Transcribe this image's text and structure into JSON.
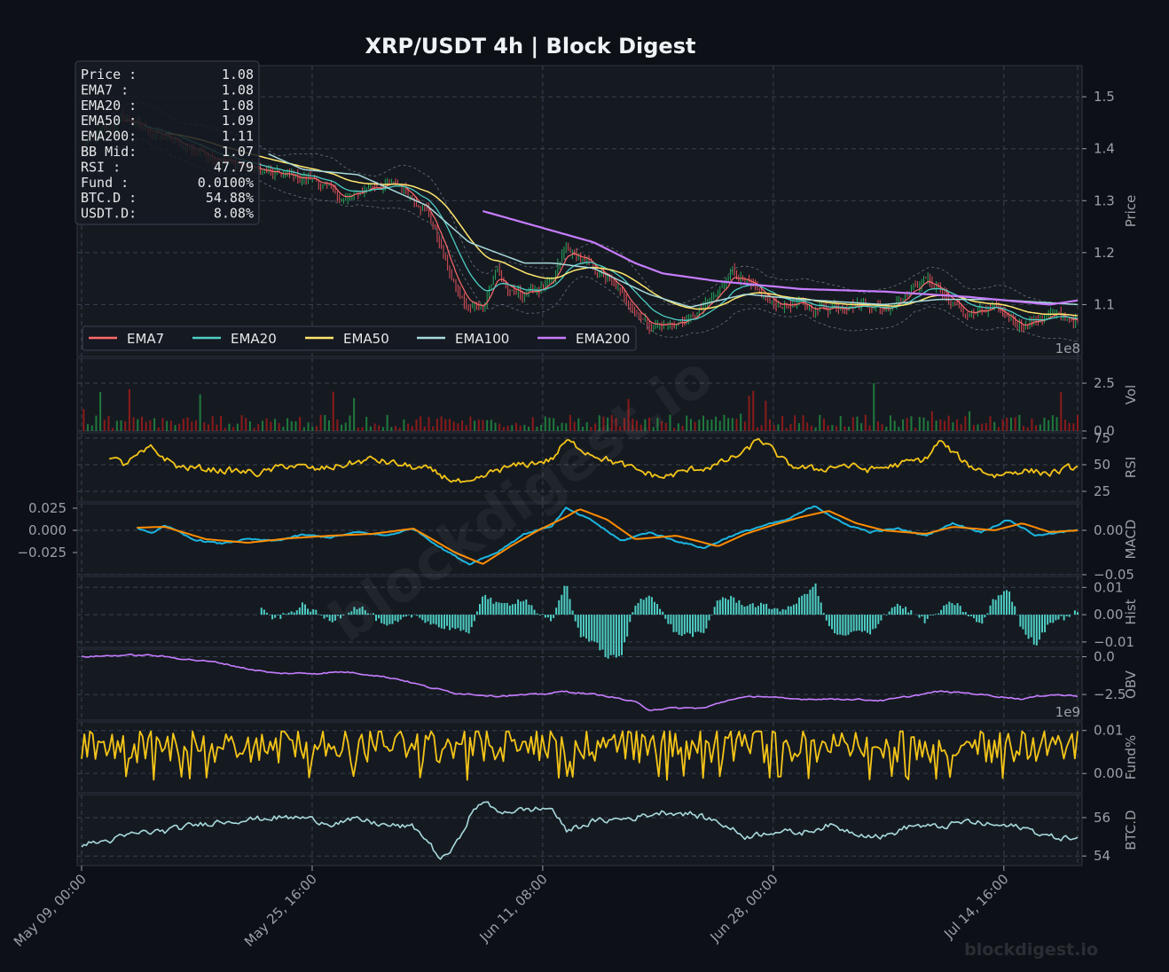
{
  "title": "XRP/USDT  4h  |  Block Digest",
  "watermark_center": "blockdigest.io",
  "watermark_corner": "blockdigest.io",
  "colors": {
    "background": "#0d1117",
    "panel": "#151a21",
    "grid": "#3a4150",
    "axis_text": "#9aa0a6",
    "up": "#26a65b",
    "down": "#e0505a",
    "ema7": "#ff6b6b",
    "ema20": "#4ecdc4",
    "ema50": "#ffe66d",
    "ema100": "#a8dadc",
    "ema200": "#c77dff",
    "rsi": "#f5c518",
    "macd": "#1cb5e0",
    "signal": "#ff8c00",
    "hist": "#4ecdc4",
    "obv": "#c77dff",
    "funding": "#f5c518",
    "btcd": "#a8dadc"
  },
  "info_box": [
    {
      "label": "Price :",
      "value": "1.08"
    },
    {
      "label": "EMA7  :",
      "value": "1.08"
    },
    {
      "label": "EMA20 :",
      "value": "1.08"
    },
    {
      "label": "EMA50 :",
      "value": "1.09"
    },
    {
      "label": "EMA200:",
      "value": "1.11"
    },
    {
      "label": "BB Mid:",
      "value": "1.07"
    },
    {
      "label": "RSI   :",
      "value": "47.79"
    },
    {
      "label": "Fund  :",
      "value": "0.0100%"
    },
    {
      "label": "BTC.D :",
      "value": "54.88%"
    },
    {
      "label": "USDT.D:",
      "value": "8.08%"
    }
  ],
  "legend": [
    "EMA7",
    "EMA20",
    "EMA50",
    "EMA100",
    "EMA200"
  ],
  "chart_data": {
    "type": "line",
    "x_range": [
      "May 09, 00:00",
      "Jul 29, 00:00"
    ],
    "x_ticks": [
      "May 09, 00:00",
      "May 25, 16:00",
      "Jun 11, 08:00",
      "Jun 28, 00:00",
      "Jul 14, 16:00"
    ],
    "panels": [
      {
        "name": "price",
        "ylabel": "Price",
        "ylim": [
          1.0,
          1.56
        ],
        "yticks": [
          "1.1",
          "1.2",
          "1.3",
          "1.4",
          "1.5"
        ],
        "offset_label": "1e8",
        "close_keypoints": [
          [
            0,
            1.4
          ],
          [
            3,
            1.46
          ],
          [
            6,
            1.42
          ],
          [
            10,
            1.38
          ],
          [
            14,
            1.35
          ],
          [
            17,
            1.34
          ],
          [
            19,
            1.3
          ],
          [
            21,
            1.33
          ],
          [
            23,
            1.33
          ],
          [
            25,
            1.28
          ],
          [
            26,
            1.21
          ],
          [
            27,
            1.13
          ],
          [
            28,
            1.09
          ],
          [
            29,
            1.1
          ],
          [
            30,
            1.17
          ],
          [
            31,
            1.12
          ],
          [
            32,
            1.12
          ],
          [
            33,
            1.13
          ],
          [
            34,
            1.14
          ],
          [
            35,
            1.21
          ],
          [
            36,
            1.19
          ],
          [
            37,
            1.17
          ],
          [
            38,
            1.15
          ],
          [
            39,
            1.12
          ],
          [
            40,
            1.09
          ],
          [
            41,
            1.06
          ],
          [
            42,
            1.06
          ],
          [
            44,
            1.07
          ],
          [
            46,
            1.12
          ],
          [
            47,
            1.17
          ],
          [
            48,
            1.14
          ],
          [
            49,
            1.12
          ],
          [
            50,
            1.1
          ],
          [
            52,
            1.1
          ],
          [
            53,
            1.09
          ],
          [
            55,
            1.1
          ],
          [
            57,
            1.1
          ],
          [
            58,
            1.09
          ],
          [
            60,
            1.13
          ],
          [
            61,
            1.15
          ],
          [
            62,
            1.13
          ],
          [
            63,
            1.1
          ],
          [
            64,
            1.08
          ],
          [
            66,
            1.09
          ],
          [
            68,
            1.06
          ],
          [
            70,
            1.08
          ],
          [
            72,
            1.07
          ]
        ],
        "ema200_keypoints": [
          [
            29,
            1.28
          ],
          [
            33,
            1.25
          ],
          [
            37,
            1.22
          ],
          [
            40,
            1.18
          ],
          [
            42,
            1.16
          ],
          [
            46,
            1.145
          ],
          [
            52,
            1.13
          ],
          [
            58,
            1.125
          ],
          [
            64,
            1.115
          ],
          [
            70,
            1.1
          ],
          [
            72,
            1.108
          ]
        ],
        "ema100_keypoints": [
          [
            13.5,
            1.39
          ],
          [
            16,
            1.36
          ],
          [
            20,
            1.35
          ],
          [
            25,
            1.29
          ],
          [
            28,
            1.22
          ],
          [
            32,
            1.18
          ],
          [
            34,
            1.18
          ],
          [
            37,
            1.17
          ],
          [
            41,
            1.12
          ],
          [
            44,
            1.095
          ],
          [
            48,
            1.12
          ],
          [
            52,
            1.11
          ],
          [
            58,
            1.1
          ],
          [
            62,
            1.11
          ],
          [
            66,
            1.11
          ],
          [
            72,
            1.1
          ]
        ]
      },
      {
        "name": "volume",
        "ylabel": "Vol",
        "ylim": [
          0,
          3.8
        ],
        "yticks": [
          "0.0",
          "2.5"
        ],
        "unit": "1e8"
      },
      {
        "name": "rsi",
        "ylabel": "RSI",
        "ylim": [
          15,
          80
        ],
        "yticks": [
          "25",
          "50",
          "75"
        ],
        "keypoints": [
          [
            2,
            58
          ],
          [
            3,
            50
          ],
          [
            5,
            65
          ],
          [
            7,
            48
          ],
          [
            10,
            45
          ],
          [
            13,
            42
          ],
          [
            15,
            50
          ],
          [
            17,
            45
          ],
          [
            19,
            50
          ],
          [
            21,
            55
          ],
          [
            23,
            50
          ],
          [
            25,
            45
          ],
          [
            28,
            30
          ],
          [
            30,
            45
          ],
          [
            32,
            50
          ],
          [
            34,
            55
          ],
          [
            35,
            72
          ],
          [
            37,
            60
          ],
          [
            40,
            45
          ],
          [
            42,
            38
          ],
          [
            44,
            45
          ],
          [
            46,
            50
          ],
          [
            48,
            62
          ],
          [
            49,
            75
          ],
          [
            51,
            50
          ],
          [
            53,
            45
          ],
          [
            55,
            50
          ],
          [
            57,
            45
          ],
          [
            59,
            50
          ],
          [
            61,
            55
          ],
          [
            62,
            72
          ],
          [
            64,
            50
          ],
          [
            66,
            40
          ],
          [
            68,
            45
          ],
          [
            70,
            42
          ],
          [
            72,
            48
          ]
        ]
      },
      {
        "name": "macd",
        "ylabel": "MACD",
        "ylim": [
          -0.05,
          0.03
        ],
        "yticks_right": [
          "−0.05",
          "0.00"
        ],
        "yticks_left": [
          "0.025",
          "0.000",
          "−0.025"
        ],
        "macd_keypoints": [
          [
            4,
            0.003
          ],
          [
            5,
            -0.004
          ],
          [
            6,
            0.006
          ],
          [
            8,
            -0.01
          ],
          [
            10,
            -0.015
          ],
          [
            12,
            -0.01
          ],
          [
            14,
            -0.012
          ],
          [
            16,
            -0.005
          ],
          [
            18,
            -0.008
          ],
          [
            20,
            -0.002
          ],
          [
            22,
            -0.006
          ],
          [
            24,
            0.002
          ],
          [
            26,
            -0.02
          ],
          [
            28,
            -0.038
          ],
          [
            30,
            -0.025
          ],
          [
            32,
            -0.004
          ],
          [
            34,
            0.005
          ],
          [
            35,
            0.025
          ],
          [
            37,
            0.01
          ],
          [
            39,
            -0.012
          ],
          [
            41,
            -0.002
          ],
          [
            43,
            -0.012
          ],
          [
            45,
            -0.02
          ],
          [
            47,
            -0.006
          ],
          [
            49,
            0.004
          ],
          [
            51,
            0.012
          ],
          [
            53,
            0.028
          ],
          [
            55,
            0.008
          ],
          [
            57,
            -0.002
          ],
          [
            59,
            0.002
          ],
          [
            61,
            -0.006
          ],
          [
            63,
            0.008
          ],
          [
            65,
            -0.002
          ],
          [
            67,
            0.012
          ],
          [
            69,
            -0.006
          ],
          [
            71,
            -0.002
          ],
          [
            72,
            0.001
          ]
        ],
        "signal_keypoints": [
          [
            4,
            0.003
          ],
          [
            6,
            0.004
          ],
          [
            9,
            -0.01
          ],
          [
            12,
            -0.014
          ],
          [
            15,
            -0.009
          ],
          [
            18,
            -0.006
          ],
          [
            21,
            -0.004
          ],
          [
            24,
            0.002
          ],
          [
            27,
            -0.025
          ],
          [
            29,
            -0.038
          ],
          [
            31,
            -0.018
          ],
          [
            33,
            0.0
          ],
          [
            35,
            0.015
          ],
          [
            36,
            0.024
          ],
          [
            38,
            0.012
          ],
          [
            40,
            -0.01
          ],
          [
            43,
            -0.006
          ],
          [
            46,
            -0.018
          ],
          [
            48,
            -0.004
          ],
          [
            50,
            0.006
          ],
          [
            52,
            0.015
          ],
          [
            54,
            0.022
          ],
          [
            56,
            0.008
          ],
          [
            58,
            0.0
          ],
          [
            61,
            -0.004
          ],
          [
            63,
            0.004
          ],
          [
            66,
            0.0
          ],
          [
            68,
            0.008
          ],
          [
            70,
            -0.002
          ],
          [
            72,
            0.0
          ]
        ]
      },
      {
        "name": "hist",
        "ylabel": "Hist",
        "ylim": [
          -0.012,
          0.014
        ],
        "yticks": [
          "0.01",
          "0.00",
          "−0.01"
        ]
      },
      {
        "name": "obv",
        "ylabel": "OBV",
        "ylim": [
          -4.2,
          0.5
        ],
        "yticks": [
          "0.0",
          "−2.5"
        ],
        "offset_label": "1e9",
        "keypoints": [
          [
            0,
            0.0
          ],
          [
            3,
            0.1
          ],
          [
            5,
            0.1
          ],
          [
            7,
            -0.1
          ],
          [
            10,
            -0.4
          ],
          [
            12,
            -0.8
          ],
          [
            14,
            -1.1
          ],
          [
            17,
            -1.1
          ],
          [
            19,
            -1.0
          ],
          [
            21,
            -1.2
          ],
          [
            23,
            -1.5
          ],
          [
            25,
            -2.0
          ],
          [
            27,
            -2.4
          ],
          [
            30,
            -2.6
          ],
          [
            33,
            -2.5
          ],
          [
            35,
            -2.3
          ],
          [
            38,
            -2.6
          ],
          [
            40,
            -3.0
          ],
          [
            41,
            -3.5
          ],
          [
            43,
            -3.4
          ],
          [
            45,
            -3.4
          ],
          [
            47,
            -2.8
          ],
          [
            49,
            -2.6
          ],
          [
            51,
            -2.8
          ],
          [
            55,
            -2.8
          ],
          [
            58,
            -2.9
          ],
          [
            60,
            -2.6
          ],
          [
            62,
            -2.3
          ],
          [
            64,
            -2.4
          ],
          [
            66,
            -2.6
          ],
          [
            68,
            -2.8
          ],
          [
            70,
            -2.5
          ],
          [
            72,
            -2.6
          ]
        ]
      },
      {
        "name": "funding",
        "ylabel": "Fund%",
        "ylim": [
          -0.0045,
          0.012
        ],
        "yticks": [
          "0.01",
          "0.00"
        ]
      },
      {
        "name": "btcd",
        "ylabel": "BTC.D",
        "ylim": [
          53.5,
          57.2
        ],
        "yticks": [
          "54",
          "56"
        ],
        "keypoints": [
          [
            0,
            54.6
          ],
          [
            2,
            54.8
          ],
          [
            4,
            55.2
          ],
          [
            6,
            55.3
          ],
          [
            8,
            55.6
          ],
          [
            10,
            55.8
          ],
          [
            12,
            55.9
          ],
          [
            14,
            56.0
          ],
          [
            16,
            56.0
          ],
          [
            18,
            55.7
          ],
          [
            20,
            55.9
          ],
          [
            22,
            55.6
          ],
          [
            24,
            55.5
          ],
          [
            25,
            54.8
          ],
          [
            26,
            53.8
          ],
          [
            27,
            54.5
          ],
          [
            28,
            56.0
          ],
          [
            29,
            56.9
          ],
          [
            30,
            56.3
          ],
          [
            32,
            56.4
          ],
          [
            34,
            56.5
          ],
          [
            35,
            55.3
          ],
          [
            37,
            55.8
          ],
          [
            40,
            56.0
          ],
          [
            42,
            56.3
          ],
          [
            44,
            56.2
          ],
          [
            46,
            55.8
          ],
          [
            48,
            55.0
          ],
          [
            50,
            55.3
          ],
          [
            52,
            55.2
          ],
          [
            54,
            55.6
          ],
          [
            56,
            55.2
          ],
          [
            58,
            55.0
          ],
          [
            60,
            55.6
          ],
          [
            62,
            55.5
          ],
          [
            64,
            55.8
          ],
          [
            66,
            55.6
          ],
          [
            68,
            55.5
          ],
          [
            70,
            55.0
          ],
          [
            72,
            54.9
          ]
        ]
      }
    ]
  }
}
